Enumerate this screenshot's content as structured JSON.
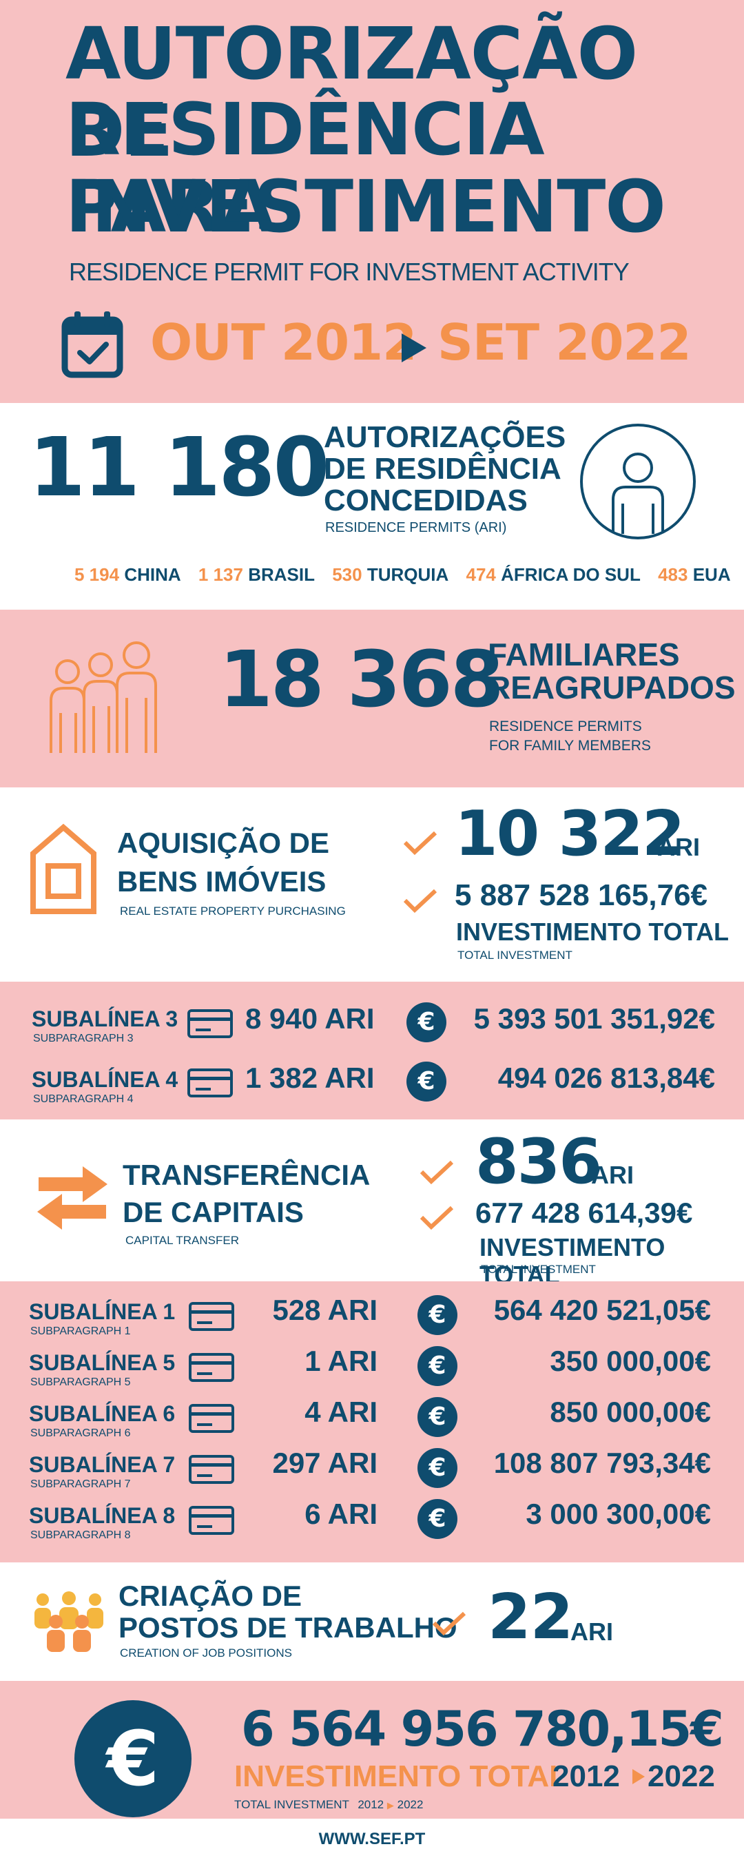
{
  "header": {
    "title_line1": "AUTORIZAÇÃO DE",
    "title_line2": "RESIDÊNCIA PARA",
    "title_line3": "INVESTIMENTO",
    "subtitle": "RESIDENCE PERMIT FOR INVESTMENT ACTIVITY",
    "period_start": "OUT 2012",
    "period_end": "SET 2022"
  },
  "permits": {
    "count": "11 180",
    "label_line1": "AUTORIZAÇÕES",
    "label_line2": "DE RESIDÊNCIA",
    "label_line3": "CONCEDIDAS",
    "sublabel": "RESIDENCE PERMITS  (ARI)",
    "countries": [
      {
        "count": "5 194",
        "name": "CHINA"
      },
      {
        "count": "1 137",
        "name": "BRASIL"
      },
      {
        "count": "530",
        "name": "TURQUIA"
      },
      {
        "count": "474",
        "name": "ÁFRICA DO SUL"
      },
      {
        "count": "483",
        "name": "EUA"
      }
    ]
  },
  "family": {
    "count": "18 368",
    "label_line1": "FAMILIARES",
    "label_line2": "REAGRUPADOS",
    "sublabel_line1": "RESIDENCE PERMITS",
    "sublabel_line2": "FOR FAMILY MEMBERS"
  },
  "real_estate": {
    "label_line1": "AQUISIÇÃO DE",
    "label_line2": "BENS IMÓVEIS",
    "sublabel": "REAL ESTATE PROPERTY PURCHASING",
    "ari_count": "10 322",
    "ari_unit": "ARI",
    "investment": "5 887 528 165,76€",
    "investment_label": "INVESTIMENTO TOTAL",
    "investment_sublabel": "TOTAL INVESTMENT",
    "rows": [
      {
        "label": "SUBALÍNEA 3",
        "sub": "SUBPARAGRAPH 3",
        "ari": "8 940 ARI",
        "value": "5 393 501 351,92€"
      },
      {
        "label": "SUBALÍNEA 4",
        "sub": "SUBPARAGRAPH 4",
        "ari": "1 382 ARI",
        "value": "494 026 813,84€"
      }
    ]
  },
  "capital": {
    "label_line1": "TRANSFERÊNCIA",
    "label_line2": "DE CAPITAIS",
    "sublabel": "CAPITAL TRANSFER",
    "ari_count": "836",
    "ari_unit": "ARI",
    "investment": "677 428 614,39€",
    "investment_label": "INVESTIMENTO TOTAL",
    "investment_sublabel": "TOTAL INVESTMENT",
    "rows": [
      {
        "label": "SUBALÍNEA 1",
        "sub": "SUBPARAGRAPH 1",
        "ari": "528 ARI",
        "value": "564 420 521,05€"
      },
      {
        "label": "SUBALÍNEA 5",
        "sub": "SUBPARAGRAPH 5",
        "ari": "1 ARI",
        "value": "350 000,00€"
      },
      {
        "label": "SUBALÍNEA 6",
        "sub": "SUBPARAGRAPH 6",
        "ari": "4 ARI",
        "value": "850 000,00€"
      },
      {
        "label": "SUBALÍNEA 7",
        "sub": "SUBPARAGRAPH 7",
        "ari": "297 ARI",
        "value": "108 807 793,34€"
      },
      {
        "label": "SUBALÍNEA 8",
        "sub": "SUBPARAGRAPH 8",
        "ari": "6 ARI",
        "value": "3 000 300,00€"
      }
    ]
  },
  "jobs": {
    "label_line1": "CRIAÇÃO DE",
    "label_line2": "POSTOS DE TRABALHO",
    "sublabel": "CREATION OF JOB POSITIONS",
    "ari_count": "22",
    "ari_unit": "ARI"
  },
  "total": {
    "amount": "6 564 956 780,15€",
    "label": "INVESTIMENTO TOTAL",
    "period_start": "2012",
    "period_end": "2022",
    "sublabel": "TOTAL INVESTMENT",
    "sub_period_start": "2012",
    "sub_period_end": "2022"
  },
  "footer": {
    "url": "WWW.SEF.PT"
  },
  "colors": {
    "navy": "#0f4c6e",
    "orange": "#f4924c",
    "pink": "#f7c1c2"
  },
  "icons": [
    "calendar-check-icon",
    "play-arrow-icon",
    "person-circle-icon",
    "family-icon",
    "house-icon",
    "check-icon",
    "card-icon",
    "euro-icon",
    "transfer-arrows-icon",
    "people-group-icon"
  ]
}
